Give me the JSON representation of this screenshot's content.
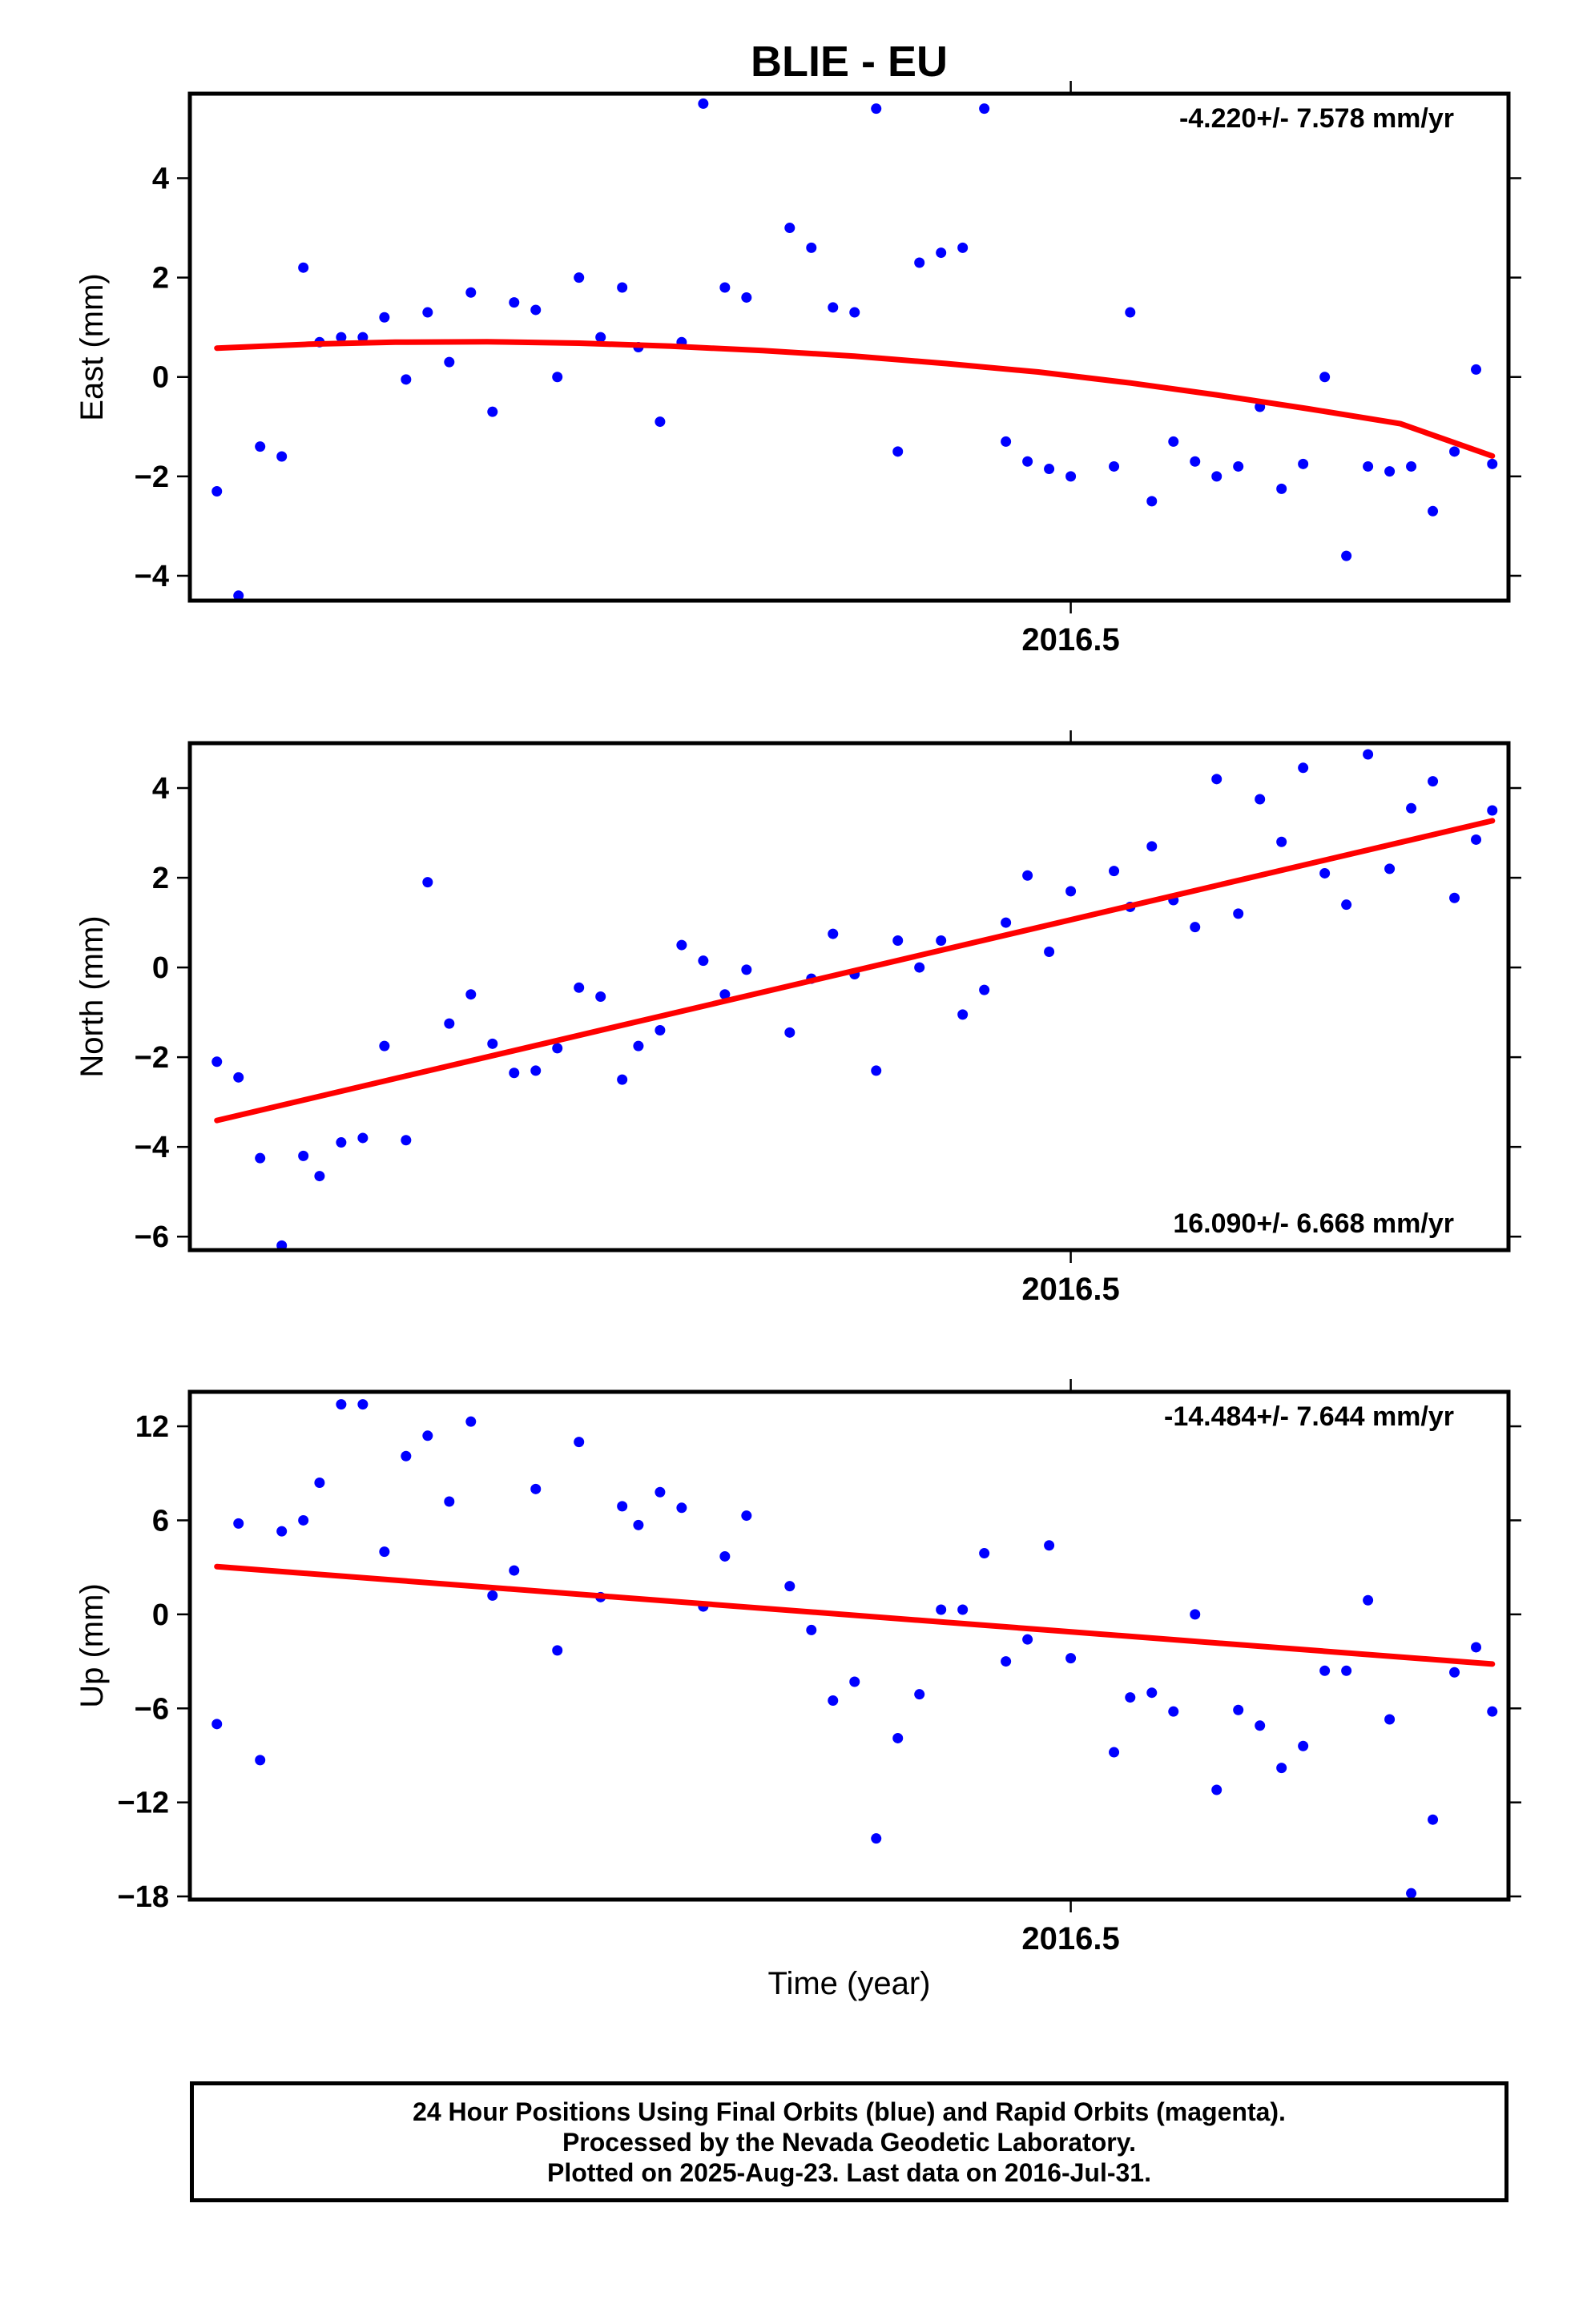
{
  "title": "BLIE - EU",
  "xlabel": "Time (year)",
  "footer": {
    "line1": "24 Hour Positions Using Final Orbits (blue) and Rapid Orbits (magenta).",
    "line2": "Processed by the Nevada Geodetic Laboratory.",
    "line3": "Plotted on 2025-Aug-23. Last data on 2016-Jul-31."
  },
  "colors": {
    "points": "#0000ff",
    "fit": "#ff0000",
    "axes": "#000000"
  },
  "chart_data": [
    {
      "type": "scatter",
      "ylabel": "East (mm)",
      "rate_label": "-4.220+/- 7.578 mm/yr",
      "rate_position": "top-right",
      "xlim": [
        2016.337,
        2016.581
      ],
      "ylim": [
        -4.5,
        5.7
      ],
      "xticks": [
        2016.5
      ],
      "xtick_labels": [
        "2016.5"
      ],
      "yticks": [
        -4,
        -2,
        0,
        2,
        4
      ],
      "ytick_labels": [
        "−4",
        "−2",
        "0",
        "2",
        "4"
      ],
      "x": [
        2016.342,
        2016.346,
        2016.35,
        2016.354,
        2016.358,
        2016.361,
        2016.365,
        2016.369,
        2016.373,
        2016.377,
        2016.381,
        2016.385,
        2016.389,
        2016.393,
        2016.397,
        2016.401,
        2016.405,
        2016.409,
        2016.413,
        2016.417,
        2016.42,
        2016.424,
        2016.428,
        2016.432,
        2016.436,
        2016.44,
        2016.448,
        2016.452,
        2016.456,
        2016.46,
        2016.464,
        2016.468,
        2016.472,
        2016.476,
        2016.48,
        2016.484,
        2016.488,
        2016.492,
        2016.496,
        2016.5,
        2016.508,
        2016.511,
        2016.515,
        2016.519,
        2016.523,
        2016.527,
        2016.531,
        2016.535,
        2016.539,
        2016.543,
        2016.547,
        2016.551,
        2016.555,
        2016.559,
        2016.563,
        2016.567,
        2016.571,
        2016.575,
        2016.578
      ],
      "series": [
        {
          "name": "Final Orbits",
          "values": [
            -2.3,
            -4.4,
            -1.4,
            -1.6,
            2.2,
            0.7,
            0.8,
            0.8,
            1.2,
            -0.05,
            1.3,
            0.3,
            1.7,
            -0.7,
            1.5,
            1.35,
            0.0,
            2.0,
            0.8,
            1.8,
            0.6,
            -0.9,
            0.7,
            5.5,
            1.8,
            1.6,
            3.0,
            2.6,
            1.4,
            1.3,
            5.4,
            -1.5,
            2.3,
            2.5,
            2.6,
            5.4,
            -1.3,
            -1.7,
            -1.85,
            -2.0,
            -1.8,
            1.3,
            -2.5,
            -1.3,
            -1.7,
            -2.0,
            -1.8,
            -0.6,
            -2.25,
            -1.75,
            0.0,
            -3.6,
            -1.8,
            -1.9,
            -1.8,
            -2.7,
            -1.5,
            0.15,
            -1.75
          ]
        }
      ],
      "fit": {
        "x": [
          2016.342,
          2016.359,
          2016.375,
          2016.392,
          2016.409,
          2016.426,
          2016.443,
          2016.46,
          2016.477,
          2016.494,
          2016.511,
          2016.527,
          2016.544,
          2016.561,
          2016.578
        ],
        "y": [
          0.58,
          0.66,
          0.7,
          0.71,
          0.68,
          0.62,
          0.53,
          0.42,
          0.27,
          0.1,
          -0.12,
          -0.36,
          -0.64,
          -0.94,
          -1.59
        ]
      }
    },
    {
      "type": "scatter",
      "ylabel": "North (mm)",
      "rate_label": "16.090+/- 6.668 mm/yr",
      "rate_position": "bottom-right",
      "xlim": [
        2016.337,
        2016.581
      ],
      "ylim": [
        -6.3,
        5.0
      ],
      "xticks": [
        2016.5
      ],
      "xtick_labels": [
        "2016.5"
      ],
      "yticks": [
        -6,
        -4,
        -2,
        0,
        2,
        4
      ],
      "ytick_labels": [
        "−6",
        "−4",
        "−2",
        "0",
        "2",
        "4"
      ],
      "x": [
        2016.342,
        2016.346,
        2016.35,
        2016.354,
        2016.358,
        2016.361,
        2016.365,
        2016.369,
        2016.373,
        2016.377,
        2016.381,
        2016.385,
        2016.389,
        2016.393,
        2016.397,
        2016.401,
        2016.405,
        2016.409,
        2016.413,
        2016.417,
        2016.42,
        2016.424,
        2016.428,
        2016.432,
        2016.436,
        2016.44,
        2016.448,
        2016.452,
        2016.456,
        2016.46,
        2016.464,
        2016.468,
        2016.472,
        2016.476,
        2016.48,
        2016.484,
        2016.488,
        2016.492,
        2016.496,
        2016.5,
        2016.508,
        2016.511,
        2016.515,
        2016.519,
        2016.523,
        2016.527,
        2016.531,
        2016.535,
        2016.539,
        2016.543,
        2016.547,
        2016.551,
        2016.555,
        2016.559,
        2016.563,
        2016.567,
        2016.571,
        2016.575,
        2016.578
      ],
      "series": [
        {
          "name": "Final Orbits",
          "values": [
            -2.1,
            -2.45,
            -4.25,
            -6.2,
            -4.2,
            -4.65,
            -3.9,
            -3.8,
            -1.75,
            -3.85,
            1.9,
            -1.25,
            -0.6,
            -1.7,
            -2.35,
            -2.3,
            -1.8,
            -0.45,
            -0.65,
            -2.5,
            -1.75,
            -1.4,
            0.5,
            0.15,
            -0.6,
            -0.05,
            -1.45,
            -0.25,
            0.75,
            -0.15,
            -2.3,
            0.6,
            0.0,
            0.6,
            -1.05,
            -0.5,
            1.0,
            2.05,
            0.35,
            1.7,
            2.15,
            1.35,
            2.7,
            1.5,
            0.9,
            4.2,
            1.2,
            3.75,
            2.8,
            4.45,
            2.1,
            1.4,
            4.75,
            2.2,
            3.55,
            4.15,
            1.55,
            2.85,
            3.5
          ]
        }
      ],
      "fit": {
        "x": [
          2016.342,
          2016.578
        ],
        "y": [
          -3.41,
          3.27
        ]
      }
    },
    {
      "type": "scatter",
      "ylabel": "Up (mm)",
      "rate_label": "-14.484+/- 7.644 mm/yr",
      "rate_position": "top-right",
      "xlim": [
        2016.337,
        2016.581
      ],
      "ylim": [
        -18.2,
        14.2
      ],
      "xticks": [
        2016.5
      ],
      "xtick_labels": [
        "2016.5"
      ],
      "yticks": [
        -18,
        -12,
        -6,
        0,
        6,
        12
      ],
      "ytick_labels": [
        "−18",
        "−12",
        "−6",
        "0",
        "6",
        "12"
      ],
      "x": [
        2016.342,
        2016.346,
        2016.35,
        2016.354,
        2016.358,
        2016.361,
        2016.365,
        2016.369,
        2016.373,
        2016.377,
        2016.381,
        2016.385,
        2016.389,
        2016.393,
        2016.397,
        2016.401,
        2016.405,
        2016.409,
        2016.413,
        2016.417,
        2016.42,
        2016.424,
        2016.428,
        2016.432,
        2016.436,
        2016.44,
        2016.448,
        2016.452,
        2016.456,
        2016.46,
        2016.464,
        2016.468,
        2016.472,
        2016.476,
        2016.48,
        2016.484,
        2016.488,
        2016.492,
        2016.496,
        2016.5,
        2016.508,
        2016.511,
        2016.515,
        2016.519,
        2016.523,
        2016.527,
        2016.531,
        2016.535,
        2016.539,
        2016.543,
        2016.547,
        2016.551,
        2016.555,
        2016.559,
        2016.563,
        2016.567,
        2016.571,
        2016.575,
        2016.578
      ],
      "series": [
        {
          "name": "Final Orbits",
          "values": [
            -7.0,
            5.8,
            -9.3,
            5.3,
            6.0,
            8.4,
            13.4,
            13.4,
            4.0,
            10.1,
            11.4,
            7.2,
            12.3,
            1.2,
            2.8,
            8.0,
            -2.3,
            11.0,
            1.1,
            6.9,
            5.7,
            7.8,
            6.8,
            0.5,
            3.7,
            6.3,
            1.8,
            -1.0,
            -5.5,
            -4.3,
            -14.3,
            -7.9,
            -5.1,
            0.3,
            0.3,
            3.9,
            -3.0,
            -1.6,
            4.4,
            -2.8,
            -8.8,
            -5.3,
            -5.0,
            -6.2,
            0.0,
            -11.2,
            -6.1,
            -7.1,
            -9.8,
            -8.4,
            -3.6,
            -3.6,
            0.9,
            -6.7,
            -17.8,
            -13.1,
            -3.7,
            -2.1,
            -6.2
          ]
        }
      ],
      "fit": {
        "x": [
          2016.342,
          2016.578
        ],
        "y": [
          3.05,
          -3.17
        ]
      }
    }
  ]
}
